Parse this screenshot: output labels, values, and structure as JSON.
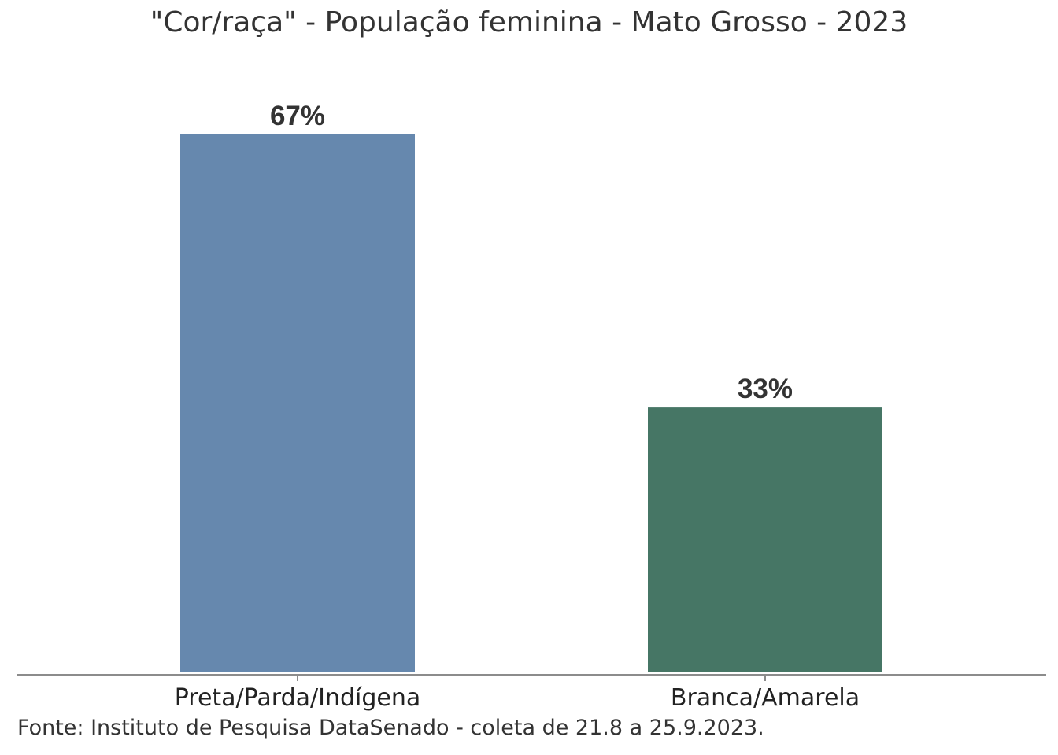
{
  "chart_data": {
    "type": "bar",
    "title": "\"Cor/raça\" - População feminina - Mato Grosso - 2023",
    "categories": [
      "Preta/Parda/Indígena",
      "Branca/Amarela"
    ],
    "values": [
      67,
      33
    ],
    "value_labels": [
      "67%",
      "33%"
    ],
    "colors": [
      "#6688ae",
      "#467665"
    ],
    "ylim": [
      0,
      67
    ],
    "grid": false,
    "legend": "none",
    "source": "Fonte: Instituto de Pesquisa DataSenado - coleta de 21.8 a 25.9.2023."
  }
}
